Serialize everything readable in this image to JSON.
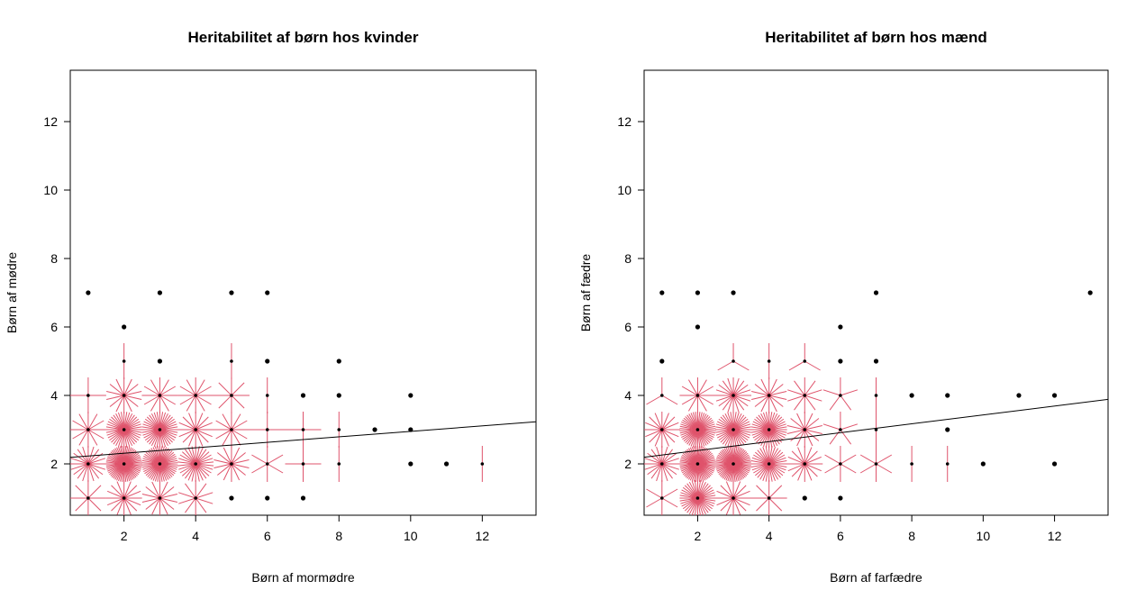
{
  "chart_data": [
    {
      "type": "scatter",
      "subtype": "sunflowerplot",
      "title": "Heritabilitet af børn hos kvinder",
      "xlabel": "Børn af  mormødre",
      "ylabel": "Børn af mødre",
      "xlim": [
        0.5,
        13.5
      ],
      "ylim": [
        0.5,
        13.5
      ],
      "xticks": [
        2,
        4,
        6,
        8,
        10,
        12
      ],
      "yticks": [
        2,
        4,
        6,
        8,
        10,
        12
      ],
      "grid": false,
      "colors": {
        "point": "#000000",
        "petal": "#DF536B",
        "line": "#000000"
      },
      "regression_line": {
        "intercept": 2.15,
        "slope": 0.08
      },
      "points": [
        {
          "x": 1,
          "y": 7,
          "n": 1
        },
        {
          "x": 3,
          "y": 7,
          "n": 1
        },
        {
          "x": 5,
          "y": 7,
          "n": 1
        },
        {
          "x": 6,
          "y": 7,
          "n": 1
        },
        {
          "x": 2,
          "y": 6,
          "n": 1
        },
        {
          "x": 2,
          "y": 5,
          "n": 2
        },
        {
          "x": 3,
          "y": 5,
          "n": 1
        },
        {
          "x": 5,
          "y": 5,
          "n": 2
        },
        {
          "x": 6,
          "y": 5,
          "n": 1
        },
        {
          "x": 8,
          "y": 5,
          "n": 1
        },
        {
          "x": 1,
          "y": 4,
          "n": 4
        },
        {
          "x": 2,
          "y": 4,
          "n": 14
        },
        {
          "x": 3,
          "y": 4,
          "n": 12
        },
        {
          "x": 4,
          "y": 4,
          "n": 12
        },
        {
          "x": 5,
          "y": 4,
          "n": 8
        },
        {
          "x": 6,
          "y": 4,
          "n": 2
        },
        {
          "x": 7,
          "y": 4,
          "n": 1
        },
        {
          "x": 8,
          "y": 4,
          "n": 1
        },
        {
          "x": 10,
          "y": 4,
          "n": 1
        },
        {
          "x": 1,
          "y": 3,
          "n": 12
        },
        {
          "x": 2,
          "y": 3,
          "n": 40
        },
        {
          "x": 3,
          "y": 3,
          "n": 40
        },
        {
          "x": 4,
          "y": 3,
          "n": 16
        },
        {
          "x": 5,
          "y": 3,
          "n": 12
        },
        {
          "x": 6,
          "y": 3,
          "n": 4
        },
        {
          "x": 7,
          "y": 3,
          "n": 4
        },
        {
          "x": 8,
          "y": 3,
          "n": 2
        },
        {
          "x": 9,
          "y": 3,
          "n": 1
        },
        {
          "x": 10,
          "y": 3,
          "n": 1
        },
        {
          "x": 1,
          "y": 2,
          "n": 20
        },
        {
          "x": 2,
          "y": 2,
          "n": 60
        },
        {
          "x": 3,
          "y": 2,
          "n": 50
        },
        {
          "x": 4,
          "y": 2,
          "n": 30
        },
        {
          "x": 5,
          "y": 2,
          "n": 14
        },
        {
          "x": 6,
          "y": 2,
          "n": 6
        },
        {
          "x": 7,
          "y": 2,
          "n": 4
        },
        {
          "x": 8,
          "y": 2,
          "n": 2
        },
        {
          "x": 10,
          "y": 2,
          "n": 1
        },
        {
          "x": 11,
          "y": 2,
          "n": 1
        },
        {
          "x": 12,
          "y": 2,
          "n": 2
        },
        {
          "x": 1,
          "y": 1,
          "n": 8
        },
        {
          "x": 2,
          "y": 1,
          "n": 16
        },
        {
          "x": 3,
          "y": 1,
          "n": 14
        },
        {
          "x": 4,
          "y": 1,
          "n": 10
        },
        {
          "x": 5,
          "y": 1,
          "n": 1
        },
        {
          "x": 6,
          "y": 1,
          "n": 1
        },
        {
          "x": 7,
          "y": 1,
          "n": 1
        }
      ]
    },
    {
      "type": "scatter",
      "subtype": "sunflowerplot",
      "title": "Heritabilitet af børn hos mænd",
      "xlabel": "Børn af  farfædre",
      "ylabel": "Børn af fædre",
      "xlim": [
        0.5,
        13.5
      ],
      "ylim": [
        0.5,
        13.5
      ],
      "xticks": [
        2,
        4,
        6,
        8,
        10,
        12
      ],
      "yticks": [
        2,
        4,
        6,
        8,
        10,
        12
      ],
      "grid": false,
      "colors": {
        "point": "#000000",
        "petal": "#DF536B",
        "line": "#000000"
      },
      "regression_line": {
        "intercept": 2.13,
        "slope": 0.13
      },
      "points": [
        {
          "x": 1,
          "y": 7,
          "n": 1
        },
        {
          "x": 2,
          "y": 7,
          "n": 1
        },
        {
          "x": 3,
          "y": 7,
          "n": 1
        },
        {
          "x": 7,
          "y": 7,
          "n": 1
        },
        {
          "x": 13,
          "y": 7,
          "n": 1
        },
        {
          "x": 2,
          "y": 6,
          "n": 1
        },
        {
          "x": 6,
          "y": 6,
          "n": 1
        },
        {
          "x": 1,
          "y": 5,
          "n": 1
        },
        {
          "x": 3,
          "y": 5,
          "n": 3
        },
        {
          "x": 4,
          "y": 5,
          "n": 2
        },
        {
          "x": 5,
          "y": 5,
          "n": 3
        },
        {
          "x": 6,
          "y": 5,
          "n": 1
        },
        {
          "x": 7,
          "y": 5,
          "n": 1
        },
        {
          "x": 1,
          "y": 4,
          "n": 3
        },
        {
          "x": 2,
          "y": 4,
          "n": 12
        },
        {
          "x": 3,
          "y": 4,
          "n": 20
        },
        {
          "x": 4,
          "y": 4,
          "n": 14
        },
        {
          "x": 5,
          "y": 4,
          "n": 10
        },
        {
          "x": 6,
          "y": 4,
          "n": 5
        },
        {
          "x": 7,
          "y": 4,
          "n": 2
        },
        {
          "x": 8,
          "y": 4,
          "n": 1
        },
        {
          "x": 9,
          "y": 4,
          "n": 1
        },
        {
          "x": 11,
          "y": 4,
          "n": 1
        },
        {
          "x": 12,
          "y": 4,
          "n": 1
        },
        {
          "x": 1,
          "y": 3,
          "n": 16
        },
        {
          "x": 2,
          "y": 3,
          "n": 50
        },
        {
          "x": 3,
          "y": 3,
          "n": 40
        },
        {
          "x": 4,
          "y": 3,
          "n": 40
        },
        {
          "x": 5,
          "y": 3,
          "n": 14
        },
        {
          "x": 6,
          "y": 3,
          "n": 5
        },
        {
          "x": 7,
          "y": 3,
          "n": 2
        },
        {
          "x": 9,
          "y": 3,
          "n": 1
        },
        {
          "x": 1,
          "y": 2,
          "n": 20
        },
        {
          "x": 2,
          "y": 2,
          "n": 60
        },
        {
          "x": 3,
          "y": 2,
          "n": 60
        },
        {
          "x": 4,
          "y": 2,
          "n": 36
        },
        {
          "x": 5,
          "y": 2,
          "n": 16
        },
        {
          "x": 6,
          "y": 2,
          "n": 6
        },
        {
          "x": 7,
          "y": 2,
          "n": 6
        },
        {
          "x": 8,
          "y": 2,
          "n": 2
        },
        {
          "x": 9,
          "y": 2,
          "n": 2
        },
        {
          "x": 10,
          "y": 2,
          "n": 1
        },
        {
          "x": 12,
          "y": 2,
          "n": 1
        },
        {
          "x": 1,
          "y": 1,
          "n": 6
        },
        {
          "x": 2,
          "y": 1,
          "n": 40
        },
        {
          "x": 3,
          "y": 1,
          "n": 16
        },
        {
          "x": 4,
          "y": 1,
          "n": 8
        },
        {
          "x": 5,
          "y": 1,
          "n": 1
        },
        {
          "x": 6,
          "y": 1,
          "n": 1
        }
      ]
    }
  ]
}
